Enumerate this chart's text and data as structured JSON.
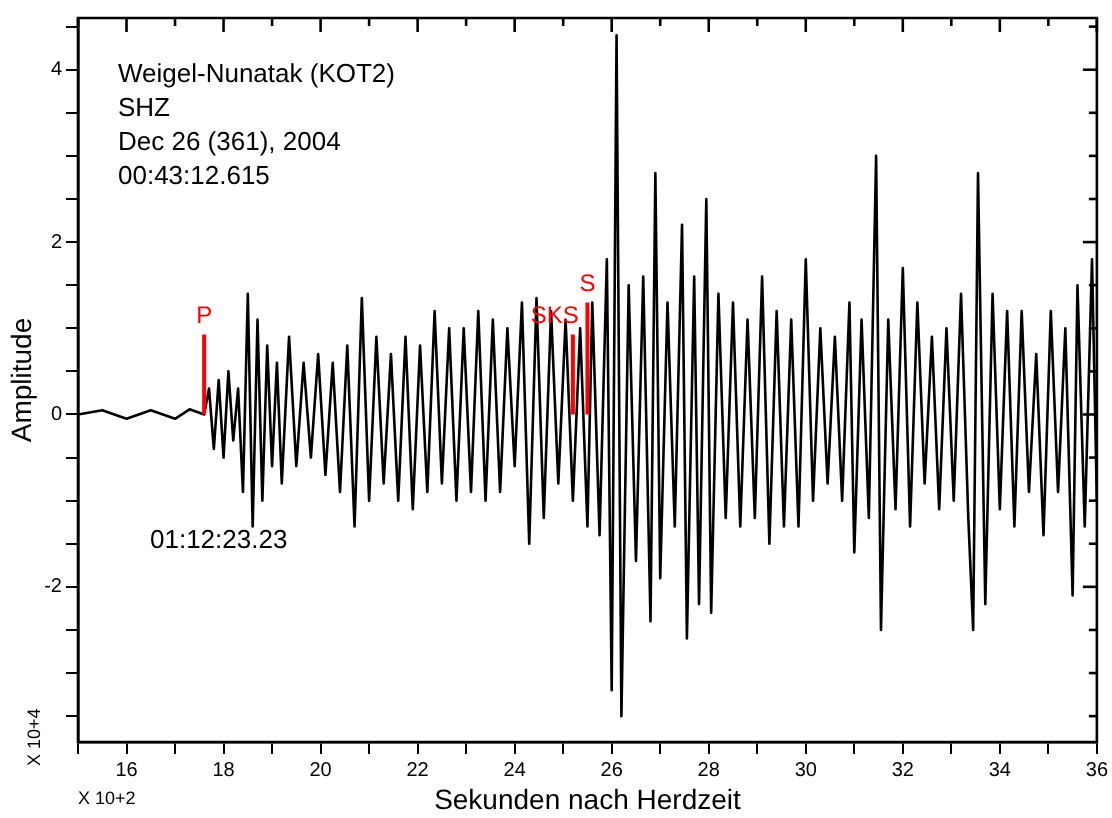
{
  "chart_data": {
    "type": "line",
    "xlabel": "Sekunden nach Herdzeit",
    "ylabel": "Amplitude",
    "annotations": [
      "Weigel-Nunatak (KOT2)",
      "SHZ",
      "Dec 26 (361), 2004",
      "00:43:12.615",
      "01:12:23.23",
      "X 10+4",
      "X 10+2"
    ],
    "xlim": [
      15,
      36
    ],
    "ylim": [
      -3.8,
      4.6
    ],
    "xticks": [
      {
        "value": 15,
        "label": null
      },
      16,
      {
        "value": 17,
        "label": null
      },
      18,
      {
        "value": 19,
        "label": null
      },
      20,
      {
        "value": 21,
        "label": null
      },
      22,
      {
        "value": 23,
        "label": null
      },
      24,
      {
        "value": 25,
        "label": null
      },
      26,
      {
        "value": 27,
        "label": null
      },
      28,
      {
        "value": 29,
        "label": null
      },
      30,
      {
        "value": 31,
        "label": null
      },
      32,
      {
        "value": 33,
        "label": null
      },
      34,
      {
        "value": 35,
        "label": null
      },
      36
    ],
    "yticks": [
      {
        "value": -3.5,
        "label": null
      },
      {
        "value": -3,
        "label": null
      },
      {
        "value": -2.5,
        "label": null
      },
      -2,
      {
        "value": -1.5,
        "label": null
      },
      {
        "value": -1,
        "label": null
      },
      {
        "value": -0.5,
        "label": null
      },
      0,
      {
        "value": 0.5,
        "label": null
      },
      {
        "value": 1,
        "label": null
      },
      {
        "value": 1.5,
        "label": null
      },
      2,
      {
        "value": 2.5,
        "label": null
      },
      {
        "value": 3,
        "label": null
      },
      {
        "value": 3.5,
        "label": null
      },
      4,
      {
        "value": 4.5,
        "label": null
      }
    ],
    "grid": false,
    "legend": false,
    "marker": "none",
    "line_style": "solid",
    "ref_lines": [
      {
        "axis": "x",
        "value": 17.6,
        "label": "P",
        "color": "#ff0000"
      },
      {
        "axis": "x",
        "value": 25.2,
        "label": "SKS",
        "color": "#ff0000"
      },
      {
        "axis": "x",
        "value": 25.5,
        "label": "S",
        "color": "#ff0000"
      }
    ],
    "series": [
      {
        "color": "#000000",
        "x": [
          15,
          15.5,
          16,
          16.5,
          17,
          17.3,
          17.6,
          17.7,
          17.8,
          17.9,
          18.0,
          18.1,
          18.2,
          18.3,
          18.4,
          18.5,
          18.6,
          18.7,
          18.8,
          18.9,
          19.0,
          19.1,
          19.2,
          19.35,
          19.5,
          19.65,
          19.8,
          19.95,
          20.1,
          20.25,
          20.4,
          20.55,
          20.7,
          20.85,
          21.0,
          21.15,
          21.3,
          21.45,
          21.6,
          21.75,
          21.9,
          22.05,
          22.2,
          22.35,
          22.5,
          22.65,
          22.8,
          22.95,
          23.1,
          23.25,
          23.4,
          23.55,
          23.7,
          23.85,
          24.0,
          24.15,
          24.3,
          24.45,
          24.6,
          24.75,
          24.9,
          25.05,
          25.2,
          25.35,
          25.5,
          25.6,
          25.75,
          25.9,
          26.0,
          26.1,
          26.2,
          26.35,
          26.5,
          26.65,
          26.8,
          26.9,
          27.0,
          27.15,
          27.3,
          27.45,
          27.55,
          27.7,
          27.8,
          27.95,
          28.05,
          28.2,
          28.35,
          28.5,
          28.65,
          28.8,
          28.95,
          29.1,
          29.25,
          29.4,
          29.55,
          29.7,
          29.85,
          30.0,
          30.15,
          30.3,
          30.45,
          30.6,
          30.75,
          30.9,
          31.0,
          31.15,
          31.3,
          31.45,
          31.55,
          31.7,
          31.85,
          32.0,
          32.15,
          32.3,
          32.45,
          32.6,
          32.75,
          32.9,
          33.05,
          33.2,
          33.35,
          33.45,
          33.55,
          33.7,
          33.85,
          34.0,
          34.15,
          34.3,
          34.45,
          34.6,
          34.75,
          34.9,
          35.05,
          35.2,
          35.35,
          35.5,
          35.6,
          35.75,
          35.9,
          36.0
        ],
        "values": [
          0,
          0.05,
          -0.05,
          0.05,
          -0.05,
          0.06,
          0,
          0.3,
          -0.4,
          0.4,
          -0.5,
          0.5,
          -0.3,
          0.3,
          -0.9,
          1.4,
          -1.3,
          1.1,
          -1.0,
          0.8,
          -0.6,
          0.6,
          -0.8,
          0.9,
          -0.6,
          0.6,
          -0.5,
          0.7,
          -0.7,
          0.6,
          -0.9,
          0.8,
          -1.3,
          1.35,
          -1.0,
          0.9,
          -0.8,
          0.7,
          -1.0,
          0.9,
          -1.1,
          0.8,
          -0.9,
          1.2,
          -0.8,
          1.0,
          -1.0,
          1.0,
          -0.9,
          1.2,
          -1.0,
          1.1,
          -0.9,
          1.0,
          -0.6,
          1.3,
          -1.5,
          1.35,
          -1.2,
          1.2,
          -0.8,
          1.1,
          -1.0,
          1.0,
          -1.3,
          1.3,
          -1.4,
          1.8,
          -3.2,
          4.4,
          -3.5,
          1.5,
          -1.7,
          1.6,
          -2.4,
          2.8,
          -1.9,
          1.3,
          -1.3,
          2.2,
          -2.6,
          1.6,
          -2.2,
          2.5,
          -2.3,
          1.4,
          -1.2,
          1.3,
          -1.3,
          1.1,
          -1.2,
          1.6,
          -1.5,
          1.2,
          -1.3,
          1.1,
          -1.3,
          1.8,
          -1.0,
          1.0,
          -0.8,
          0.9,
          -1.0,
          1.3,
          -1.6,
          1.1,
          -1.2,
          3.0,
          -2.5,
          1.1,
          -1.1,
          1.7,
          -1.3,
          1.3,
          -0.8,
          0.9,
          -1.1,
          1.0,
          -1.0,
          1.4,
          -1.2,
          -2.5,
          2.8,
          -2.2,
          1.4,
          -1.1,
          1.2,
          -1.3,
          1.2,
          -0.9,
          0.7,
          -1.4,
          1.2,
          -0.9,
          1.0,
          -2.1,
          1.5,
          -1.3,
          1.8,
          -1.0
        ]
      }
    ]
  }
}
